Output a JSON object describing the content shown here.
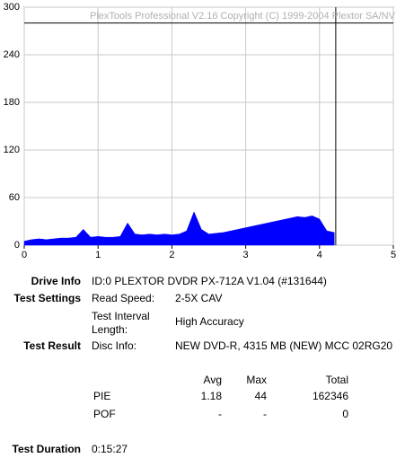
{
  "chart_data": {
    "type": "area",
    "annotation": "PlexTools Professional V2.16 Copyright (C) 1999-2004 Plextor SA/NV",
    "series": [
      {
        "name": "PIE",
        "color": "#0000ff",
        "x": [
          0,
          0.1,
          0.2,
          0.3,
          0.4,
          0.5,
          0.6,
          0.7,
          0.8,
          0.9,
          1.0,
          1.1,
          1.2,
          1.3,
          1.4,
          1.5,
          1.6,
          1.7,
          1.8,
          1.9,
          2.0,
          2.1,
          2.2,
          2.3,
          2.4,
          2.5,
          2.6,
          2.7,
          2.8,
          2.9,
          3.0,
          3.1,
          3.2,
          3.3,
          3.4,
          3.5,
          3.6,
          3.7,
          3.8,
          3.9,
          4.0,
          4.1,
          4.2
        ],
        "values": [
          5,
          7,
          8,
          7,
          8,
          9,
          9,
          10,
          20,
          10,
          11,
          10,
          10,
          11,
          28,
          14,
          13,
          14,
          13,
          14,
          13,
          14,
          18,
          42,
          20,
          14,
          15,
          16,
          18,
          20,
          22,
          24,
          26,
          28,
          30,
          32,
          34,
          36,
          35,
          37,
          33,
          18,
          16
        ]
      }
    ],
    "xlim": [
      0,
      5
    ],
    "xticks": [
      0,
      1,
      2,
      3,
      4,
      5
    ],
    "ylim": [
      0,
      300
    ],
    "yticks": [
      0,
      60,
      120,
      180,
      240,
      300
    ],
    "grid": true,
    "reference_line_y": 280,
    "end_marker_x": 4.22
  },
  "info": {
    "drive_label": "Drive Info",
    "drive": "ID:0 PLEXTOR DVDR PX-712A V1.04 (#131644)",
    "settings_label": "Test Settings",
    "read_speed_label": "Read Speed:",
    "read_speed": "2-5X CAV",
    "interval_label": "Test Interval Length:",
    "interval": "High Accuracy",
    "result_label": "Test Result",
    "disc_label": "Disc Info:",
    "disc": "NEW DVD-R, 4315 MB (NEW) MCC 02RG20",
    "table": {
      "header": [
        "Avg",
        "Max",
        "Total"
      ],
      "rows": [
        [
          "PIE",
          "1.18",
          "44",
          "162346"
        ],
        [
          "POF",
          "-",
          "-",
          "0"
        ]
      ]
    },
    "duration_label": "Test Duration",
    "duration": "0:15:27"
  }
}
